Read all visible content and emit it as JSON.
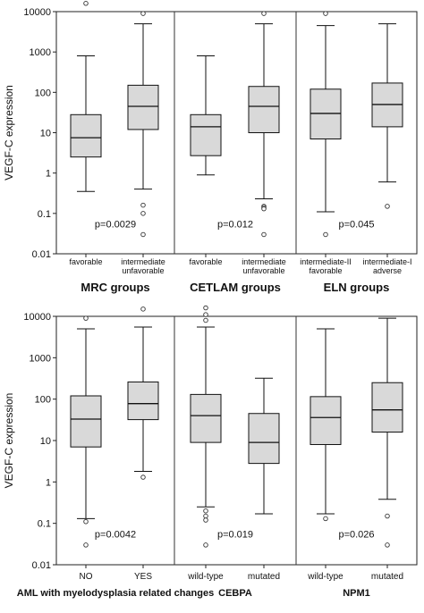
{
  "chart_data": [
    {
      "type": "box",
      "ylabel": "VEGF-C expression",
      "yscale": "log",
      "ylim": [
        0.01,
        10000
      ],
      "yticks": [
        "0.01",
        "0.1",
        "1",
        "10",
        "100",
        "1000",
        "10000"
      ],
      "panels": [
        {
          "title": "MRC groups",
          "pvalue": "p=0.0029",
          "categories": [
            {
              "label": [
                "favorable"
              ],
              "min": 0.35,
              "q1": 2.5,
              "median": 7.5,
              "q3": 28,
              "max": 800,
              "outliers": [
                16000
              ]
            },
            {
              "label": [
                "intermediate",
                "unfavorable"
              ],
              "min": 0.4,
              "q1": 12,
              "median": 45,
              "q3": 150,
              "max": 5000,
              "outliers": [
                9000,
                0.16,
                0.1,
                0.03
              ]
            }
          ]
        },
        {
          "title": "CETLAM groups",
          "pvalue": "p=0.012",
          "categories": [
            {
              "label": [
                "favorable"
              ],
              "min": 0.9,
              "q1": 2.7,
              "median": 14,
              "q3": 28,
              "max": 800,
              "outliers": []
            },
            {
              "label": [
                "intermediate",
                "unfavorable"
              ],
              "min": 0.23,
              "q1": 10,
              "median": 45,
              "q3": 140,
              "max": 5000,
              "outliers": [
                9000,
                0.15,
                0.14,
                0.13,
                0.03
              ]
            }
          ]
        },
        {
          "title": "ELN groups",
          "pvalue": "p=0.045",
          "categories": [
            {
              "label": [
                "intermediate-II",
                "favorable"
              ],
              "min": 0.11,
              "q1": 7,
              "median": 30,
              "q3": 120,
              "max": 4500,
              "outliers": [
                9000,
                0.03
              ]
            },
            {
              "label": [
                "intermediate-I",
                "adverse"
              ],
              "min": 0.6,
              "q1": 14,
              "median": 50,
              "q3": 170,
              "max": 5000,
              "outliers": [
                0.15
              ]
            }
          ]
        }
      ]
    },
    {
      "type": "box",
      "ylabel": "VEGF-C expression",
      "yscale": "log",
      "ylim": [
        0.01,
        10000
      ],
      "yticks": [
        "0.01",
        "0.1",
        "1",
        "10",
        "100",
        "1000",
        "10000"
      ],
      "panels": [
        {
          "title": "AML with myelodysplasia related changes",
          "pvalue": "p=0.0042",
          "categories": [
            {
              "label": [
                "NO"
              ],
              "min": 0.13,
              "q1": 7,
              "median": 33,
              "q3": 120,
              "max": 5000,
              "outliers": [
                9000,
                0.11,
                0.03
              ]
            },
            {
              "label": [
                "YES"
              ],
              "min": 1.8,
              "q1": 32,
              "median": 78,
              "q3": 260,
              "max": 5500,
              "outliers": [
                15000,
                1.3
              ]
            }
          ]
        },
        {
          "title": "CEBPA",
          "pvalue": "p=0.019",
          "categories": [
            {
              "label": [
                "wild-type"
              ],
              "min": 0.25,
              "q1": 9,
              "median": 40,
              "q3": 130,
              "max": 5500,
              "outliers": [
                16000,
                11000,
                8000,
                0.2,
                0.15,
                0.12,
                0.03
              ]
            },
            {
              "label": [
                "mutated"
              ],
              "min": 0.17,
              "q1": 2.8,
              "median": 9,
              "q3": 45,
              "max": 320,
              "outliers": []
            }
          ]
        },
        {
          "title": "NPM1",
          "pvalue": "p=0.026",
          "categories": [
            {
              "label": [
                "wild-type"
              ],
              "min": 0.17,
              "q1": 8,
              "median": 36,
              "q3": 115,
              "max": 5000,
              "outliers": [
                0.13
              ]
            },
            {
              "label": [
                "mutated"
              ],
              "min": 0.38,
              "q1": 16,
              "median": 55,
              "q3": 250,
              "max": 9000,
              "outliers": [
                0.15,
                0.03
              ]
            }
          ]
        }
      ]
    }
  ]
}
